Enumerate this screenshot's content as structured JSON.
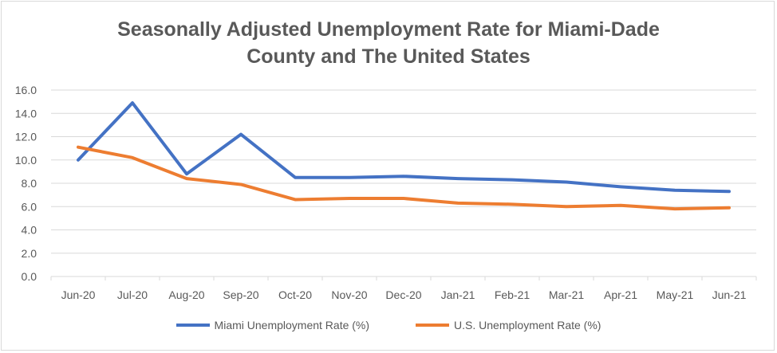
{
  "chart_data": {
    "type": "line",
    "title_line1": "Seasonally Adjusted Unemployment Rate for Miami-Dade",
    "title_line2": "County and The United States",
    "categories": [
      "Jun-20",
      "Jul-20",
      "Aug-20",
      "Sep-20",
      "Oct-20",
      "Nov-20",
      "Dec-20",
      "Jan-21",
      "Feb-21",
      "Mar-21",
      "Apr-21",
      "May-21",
      "Jun-21"
    ],
    "series": [
      {
        "name": "Miami Unemployment Rate (%)",
        "color": "#4472c4",
        "values": [
          10.0,
          14.9,
          8.8,
          12.2,
          8.5,
          8.5,
          8.6,
          8.4,
          8.3,
          8.1,
          7.7,
          7.4,
          7.3
        ]
      },
      {
        "name": "U.S. Unemployment Rate (%)",
        "color": "#ed7d31",
        "values": [
          11.1,
          10.2,
          8.4,
          7.9,
          6.6,
          6.7,
          6.7,
          6.3,
          6.2,
          6.0,
          6.1,
          5.8,
          5.9
        ]
      }
    ],
    "yticks": [
      "0.0",
      "2.0",
      "4.0",
      "6.0",
      "8.0",
      "10.0",
      "12.0",
      "14.0",
      "16.0"
    ],
    "ylim": [
      0,
      16
    ],
    "xlabel": "",
    "ylabel": "",
    "grid": true,
    "legend": "bottom"
  }
}
